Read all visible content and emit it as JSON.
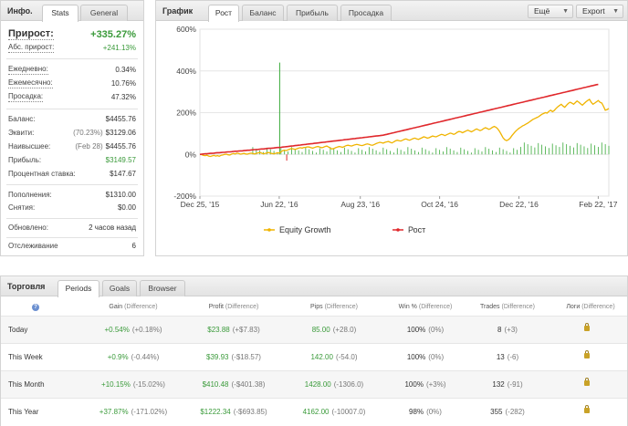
{
  "stats": {
    "title": "Инфо.",
    "tabs": [
      {
        "label": "Stats"
      },
      {
        "label": "General"
      }
    ],
    "gain_label": "Прирост:",
    "gain_value": "+335.27%",
    "abs_gain_label": "Абс. прирост:",
    "abs_gain_value": "+241.13%",
    "daily_label": "Ежедневно:",
    "daily_value": "0.34%",
    "monthly_label": "Ежемесячно:",
    "monthly_value": "10.76%",
    "drawdown_label": "Просадка:",
    "drawdown_value": "47.32%",
    "balance_label": "Баланс:",
    "balance_value": "$4455.76",
    "equity_label": "Эквити:",
    "equity_prefix": "(70.23%)",
    "equity_value": "$3129.06",
    "highest_label": "Наивысшее:",
    "highest_prefix": "(Feb 28)",
    "highest_value": "$4455.76",
    "profit_label": "Прибыль:",
    "profit_value": "$3149.57",
    "interest_label": "Процентная ставка:",
    "interest_value": "$147.67",
    "deposits_label": "Пополнения:",
    "deposits_value": "$1310.00",
    "withdrawals_label": "Снятия:",
    "withdrawals_value": "$0.00",
    "updated_label": "Обновлено:",
    "updated_value": "2 часов назад",
    "tracking_label": "Отслеживание",
    "tracking_value": "6"
  },
  "chart_panel": {
    "title": "График",
    "tabs": [
      {
        "label": "Рост"
      },
      {
        "label": "Баланс"
      },
      {
        "label": "Прибыль"
      },
      {
        "label": "Просадка"
      }
    ],
    "more_label": "Ещё",
    "export_label": "Export"
  },
  "chart_data": {
    "type": "line",
    "ylabel_ticks": [
      "600%",
      "400%",
      "200%",
      "0%",
      "-200%"
    ],
    "y_ticks": [
      600,
      400,
      200,
      0,
      -200
    ],
    "ylim": [
      -200,
      600
    ],
    "x_ticks": [
      "Dec 25, '15",
      "Jun 22, '16",
      "Aug 23, '16",
      "Oct 24, '16",
      "Dec 22, '16",
      "Feb 22, '17"
    ],
    "x_tick_index": [
      0,
      45,
      91,
      136,
      181,
      226
    ],
    "legend_position": "bottom",
    "grid": true,
    "colors": {
      "equity": "#f0b400",
      "growth": "#e0282c",
      "bars": "#3aaa3a"
    },
    "series": [
      {
        "name": "Equity Growth",
        "values": [
          0,
          -1,
          -5,
          -6,
          -4,
          -8,
          -10,
          -7,
          -5,
          -8,
          -6,
          -9,
          -4,
          -3,
          0,
          1,
          -2,
          -3,
          2,
          4,
          2,
          6,
          4,
          1,
          3,
          5,
          2,
          1,
          4,
          6,
          4,
          2,
          5,
          7,
          9,
          6,
          3,
          4,
          7,
          9,
          6,
          4,
          3,
          5,
          8,
          6,
          12,
          18,
          20,
          18,
          22,
          25,
          28,
          26,
          24,
          27,
          30,
          32,
          30,
          33,
          34,
          36,
          35,
          32,
          30,
          33,
          36,
          38,
          35,
          32,
          34,
          38,
          40,
          35,
          30,
          26,
          28,
          32,
          35,
          38,
          36,
          34,
          38,
          42,
          44,
          42,
          40,
          43,
          46,
          48,
          46,
          44,
          42,
          45,
          48,
          50,
          48,
          45,
          44,
          48,
          52,
          55,
          58,
          56,
          54,
          58,
          60,
          62,
          58,
          55,
          60,
          65,
          68,
          66,
          64,
          68,
          72,
          74,
          70,
          68,
          72,
          76,
          78,
          74,
          72,
          76,
          80,
          84,
          82,
          78,
          80,
          84,
          88,
          86,
          84,
          88,
          92,
          96,
          94,
          90,
          94,
          98,
          102,
          100,
          96,
          100,
          106,
          110,
          108,
          104,
          108,
          112,
          116,
          112,
          108,
          112,
          118,
          122,
          118,
          114,
          118,
          124,
          128,
          124,
          120,
          124,
          130,
          134,
          130,
          122,
          110,
          95,
          80,
          70,
          66,
          70,
          78,
          90,
          100,
          110,
          118,
          125,
          130,
          136,
          140,
          145,
          150,
          156,
          162,
          168,
          172,
          176,
          180,
          186,
          192,
          196,
          200,
          198,
          206,
          212,
          205,
          210,
          220,
          228,
          234,
          240,
          232,
          226,
          236,
          244,
          250,
          246,
          240,
          248,
          256,
          250,
          242,
          236,
          244,
          252,
          258,
          264,
          250,
          240,
          246,
          252,
          258,
          250,
          246,
          230,
          212,
          215,
          220
        ]
      },
      {
        "name": "Рост",
        "values": [
          0,
          1,
          2,
          3,
          3,
          4,
          5,
          5,
          6,
          7,
          8,
          8,
          9,
          10,
          10,
          11,
          12,
          12,
          13,
          14,
          15,
          15,
          16,
          17,
          17,
          18,
          19,
          20,
          20,
          21,
          22,
          23,
          23,
          24,
          25,
          26,
          26,
          27,
          28,
          29,
          29,
          30,
          31,
          32,
          33,
          33,
          34,
          35,
          36,
          37,
          38,
          39,
          40,
          41,
          42,
          43,
          44,
          45,
          46,
          47,
          48,
          49,
          50,
          51,
          52,
          53,
          54,
          55,
          56,
          57,
          58,
          59,
          60,
          61,
          62,
          63,
          64,
          65,
          66,
          67,
          68,
          69,
          70,
          71,
          72,
          73,
          74,
          75,
          76,
          77,
          78,
          79,
          80,
          81,
          82,
          83,
          84,
          85,
          86,
          87,
          88,
          89,
          90,
          91,
          92,
          94,
          96,
          98,
          100,
          102,
          104,
          106,
          108,
          110,
          112,
          114,
          116,
          118,
          120,
          122,
          124,
          126,
          128,
          130,
          132,
          134,
          136,
          138,
          140,
          142,
          144,
          146,
          148,
          150,
          152,
          154,
          156,
          158,
          160,
          162,
          164,
          166,
          168,
          170,
          172,
          174,
          176,
          178,
          180,
          182,
          184,
          186,
          188,
          190,
          192,
          194,
          196,
          198,
          200,
          202,
          204,
          206,
          208,
          210,
          212,
          214,
          216,
          218,
          220,
          222,
          224,
          226,
          228,
          230,
          232,
          234,
          236,
          238,
          240,
          242,
          244,
          246,
          248,
          250,
          252,
          254,
          256,
          258,
          260,
          262,
          264,
          266,
          268,
          270,
          272,
          274,
          276,
          278,
          280,
          282,
          284,
          286,
          288,
          290,
          292,
          294,
          296,
          298,
          300,
          302,
          304,
          306,
          308,
          310,
          312,
          314,
          316,
          318,
          320,
          322,
          324,
          326,
          328,
          330,
          332,
          334,
          335
        ]
      }
    ]
  },
  "trade": {
    "title": "Торговля",
    "tabs": [
      {
        "label": "Periods"
      },
      {
        "label": "Goals"
      },
      {
        "label": "Browser"
      }
    ],
    "help_icon": "question-icon",
    "headers": [
      {
        "label": "Gain",
        "diff": "(Difference)"
      },
      {
        "label": "Profit",
        "diff": "(Difference)"
      },
      {
        "label": "Pips",
        "diff": "(Difference)"
      },
      {
        "label": "Win %",
        "diff": "(Difference)"
      },
      {
        "label": "Trades",
        "diff": "(Difference)"
      },
      {
        "label": "Логи",
        "diff": "(Difference)"
      }
    ],
    "rows": [
      {
        "period": "Today",
        "gain": "+0.54%",
        "gain_diff": "(+0.18%)",
        "profit": "$23.88",
        "profit_diff": "(+$7.83)",
        "pips": "85.00",
        "pips_diff": "(+28.0)",
        "win": "100%",
        "win_diff": "(0%)",
        "trades": "8",
        "trades_diff": "(+3)"
      },
      {
        "period": "This Week",
        "gain": "+0.9%",
        "gain_diff": "(-0.44%)",
        "profit": "$39.93",
        "profit_diff": "(-$18.57)",
        "pips": "142.00",
        "pips_diff": "(-54.0)",
        "win": "100%",
        "win_diff": "(0%)",
        "trades": "13",
        "trades_diff": "(-6)"
      },
      {
        "period": "This Month",
        "gain": "+10.15%",
        "gain_diff": "(-15.02%)",
        "profit": "$410.48",
        "profit_diff": "(-$401.38)",
        "pips": "1428.00",
        "pips_diff": "(-1306.0)",
        "win": "100%",
        "win_diff": "(+3%)",
        "trades": "132",
        "trades_diff": "(-91)"
      },
      {
        "period": "This Year",
        "gain": "+37.87%",
        "gain_diff": "(-171.02%)",
        "profit": "$1222.34",
        "profit_diff": "(-$693.85)",
        "pips": "4162.00",
        "pips_diff": "(-10007.0)",
        "win": "98%",
        "win_diff": "(0%)",
        "trades": "355",
        "trades_diff": "(-282)"
      }
    ]
  }
}
